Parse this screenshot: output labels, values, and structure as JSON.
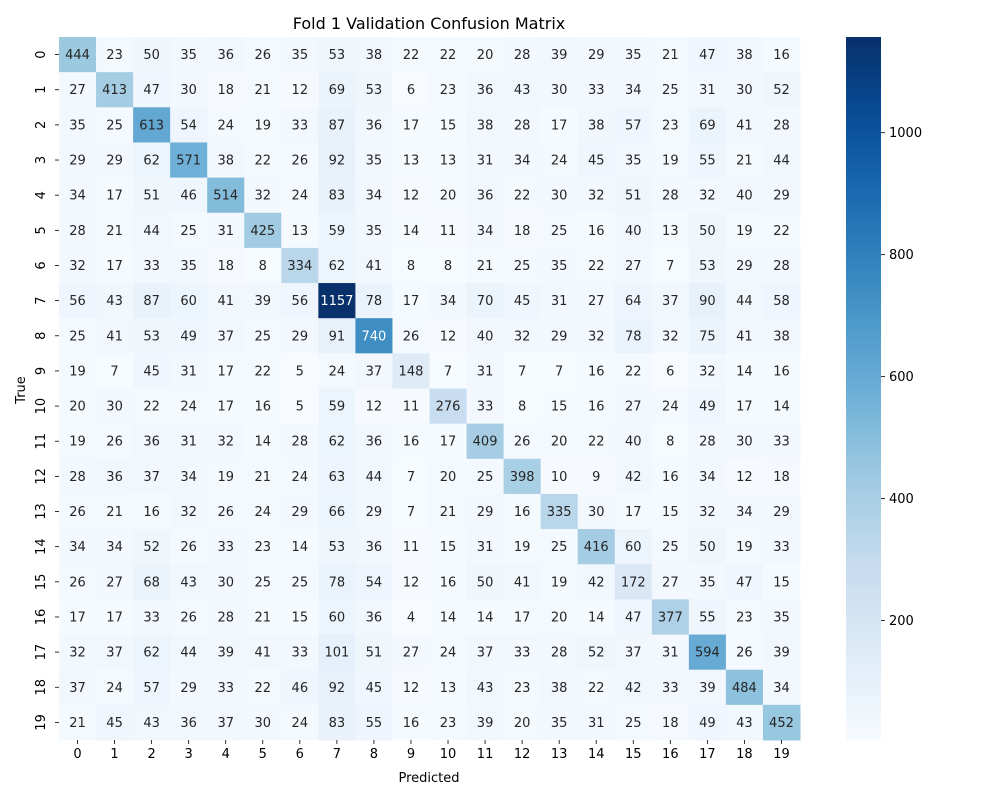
{
  "chart_data": {
    "type": "heatmap",
    "title": "Fold 1 Validation Confusion Matrix",
    "xlabel": "Predicted",
    "ylabel": "True",
    "x_categories": [
      "0",
      "1",
      "2",
      "3",
      "4",
      "5",
      "6",
      "7",
      "8",
      "9",
      "10",
      "11",
      "12",
      "13",
      "14",
      "15",
      "16",
      "17",
      "18",
      "19"
    ],
    "y_categories": [
      "0",
      "1",
      "2",
      "3",
      "4",
      "5",
      "6",
      "7",
      "8",
      "9",
      "10",
      "11",
      "12",
      "13",
      "14",
      "15",
      "16",
      "17",
      "18",
      "19"
    ],
    "values": [
      [
        444,
        23,
        50,
        35,
        36,
        26,
        35,
        53,
        38,
        22,
        22,
        20,
        28,
        39,
        29,
        35,
        21,
        47,
        38,
        16
      ],
      [
        27,
        413,
        47,
        30,
        18,
        21,
        12,
        69,
        53,
        6,
        23,
        36,
        43,
        30,
        33,
        34,
        25,
        31,
        30,
        52
      ],
      [
        35,
        25,
        613,
        54,
        24,
        19,
        33,
        87,
        36,
        17,
        15,
        38,
        28,
        17,
        38,
        57,
        23,
        69,
        41,
        28
      ],
      [
        29,
        29,
        62,
        571,
        38,
        22,
        26,
        92,
        35,
        13,
        13,
        31,
        34,
        24,
        45,
        35,
        19,
        55,
        21,
        44
      ],
      [
        34,
        17,
        51,
        46,
        514,
        32,
        24,
        83,
        34,
        12,
        20,
        36,
        22,
        30,
        32,
        51,
        28,
        32,
        40,
        29
      ],
      [
        28,
        21,
        44,
        25,
        31,
        425,
        13,
        59,
        35,
        14,
        11,
        34,
        18,
        25,
        16,
        40,
        13,
        50,
        19,
        22
      ],
      [
        32,
        17,
        33,
        35,
        18,
        8,
        334,
        62,
        41,
        8,
        8,
        21,
        25,
        35,
        22,
        27,
        7,
        53,
        29,
        28
      ],
      [
        56,
        43,
        87,
        60,
        41,
        39,
        56,
        1157,
        78,
        17,
        34,
        70,
        45,
        31,
        27,
        64,
        37,
        90,
        44,
        58
      ],
      [
        25,
        41,
        53,
        49,
        37,
        25,
        29,
        91,
        740,
        26,
        12,
        40,
        32,
        29,
        32,
        78,
        32,
        75,
        41,
        38
      ],
      [
        19,
        7,
        45,
        31,
        17,
        22,
        5,
        24,
        37,
        148,
        7,
        31,
        7,
        7,
        16,
        22,
        6,
        32,
        14,
        16
      ],
      [
        20,
        30,
        22,
        24,
        17,
        16,
        5,
        59,
        12,
        11,
        276,
        33,
        8,
        15,
        16,
        27,
        24,
        49,
        17,
        14
      ],
      [
        19,
        26,
        36,
        31,
        32,
        14,
        28,
        62,
        36,
        16,
        17,
        409,
        26,
        20,
        22,
        40,
        8,
        28,
        30,
        33
      ],
      [
        28,
        36,
        37,
        34,
        19,
        21,
        24,
        63,
        44,
        7,
        20,
        25,
        398,
        10,
        9,
        42,
        16,
        34,
        12,
        18
      ],
      [
        26,
        21,
        16,
        32,
        26,
        24,
        29,
        66,
        29,
        7,
        21,
        29,
        16,
        335,
        30,
        17,
        15,
        32,
        34,
        29
      ],
      [
        34,
        34,
        52,
        26,
        33,
        23,
        14,
        53,
        36,
        11,
        15,
        31,
        19,
        25,
        416,
        60,
        25,
        50,
        19,
        33
      ],
      [
        26,
        27,
        68,
        43,
        30,
        25,
        25,
        78,
        54,
        12,
        16,
        50,
        41,
        19,
        42,
        172,
        27,
        35,
        47,
        15
      ],
      [
        17,
        17,
        33,
        26,
        28,
        21,
        15,
        60,
        36,
        4,
        14,
        14,
        17,
        20,
        14,
        47,
        377,
        55,
        23,
        35
      ],
      [
        32,
        37,
        62,
        44,
        39,
        41,
        33,
        101,
        51,
        27,
        24,
        37,
        33,
        28,
        52,
        37,
        31,
        594,
        26,
        39
      ],
      [
        37,
        24,
        57,
        29,
        33,
        22,
        46,
        92,
        45,
        12,
        13,
        43,
        23,
        38,
        22,
        42,
        33,
        39,
        484,
        34
      ],
      [
        21,
        45,
        43,
        36,
        37,
        30,
        24,
        83,
        55,
        16,
        23,
        39,
        20,
        35,
        31,
        25,
        18,
        49,
        43,
        452
      ]
    ],
    "colorbar": {
      "colormap": "Blues",
      "vmin": 4,
      "vmax": 1157,
      "ticks": [
        200,
        400,
        600,
        800,
        1000
      ]
    }
  }
}
